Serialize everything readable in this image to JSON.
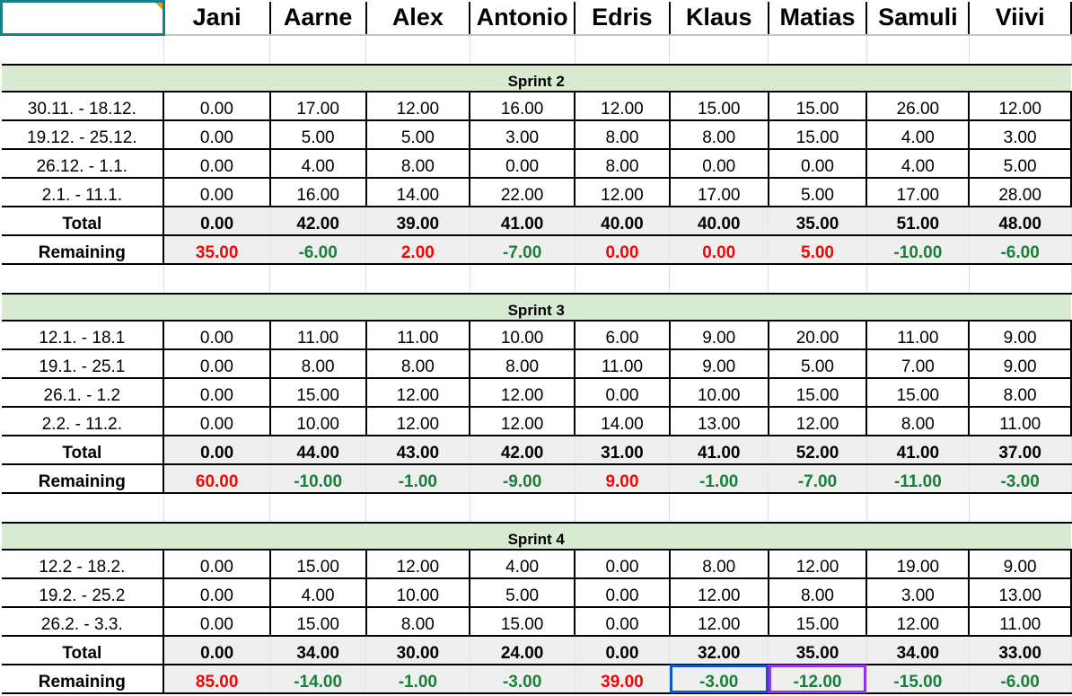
{
  "headers": [
    "Jani",
    "Aarne",
    "Alex",
    "Antonio",
    "Edris",
    "Klaus",
    "Matias",
    "Samuli",
    "Viivi"
  ],
  "colors": {
    "sprint_band": "#d9ead3",
    "negative": "#188038",
    "positive": "#ff0000",
    "summary_bg": "#efefef"
  },
  "sprints": [
    {
      "title": "Sprint 2",
      "rows": [
        {
          "label": "30.11. - 18.12.",
          "values": [
            "0.00",
            "17.00",
            "12.00",
            "16.00",
            "12.00",
            "15.00",
            "15.00",
            "26.00",
            "12.00"
          ]
        },
        {
          "label": "19.12. - 25.12.",
          "values": [
            "0.00",
            "5.00",
            "5.00",
            "3.00",
            "8.00",
            "8.00",
            "15.00",
            "4.00",
            "3.00"
          ]
        },
        {
          "label": "26.12. - 1.1.",
          "values": [
            "0.00",
            "4.00",
            "8.00",
            "0.00",
            "8.00",
            "0.00",
            "0.00",
            "4.00",
            "5.00"
          ]
        },
        {
          "label": "2.1. - 11.1.",
          "values": [
            "0.00",
            "16.00",
            "14.00",
            "22.00",
            "12.00",
            "17.00",
            "5.00",
            "17.00",
            "28.00"
          ]
        }
      ],
      "total": {
        "label": "Total",
        "values": [
          "0.00",
          "42.00",
          "39.00",
          "41.00",
          "40.00",
          "40.00",
          "35.00",
          "51.00",
          "48.00"
        ]
      },
      "remaining": {
        "label": "Remaining",
        "values": [
          "35.00",
          "-6.00",
          "2.00",
          "-7.00",
          "0.00",
          "0.00",
          "5.00",
          "-10.00",
          "-6.00"
        ]
      }
    },
    {
      "title": "Sprint 3",
      "rows": [
        {
          "label": "12.1. - 18.1",
          "values": [
            "0.00",
            "11.00",
            "11.00",
            "10.00",
            "6.00",
            "9.00",
            "20.00",
            "11.00",
            "9.00"
          ]
        },
        {
          "label": "19.1. - 25.1",
          "values": [
            "0.00",
            "8.00",
            "8.00",
            "8.00",
            "11.00",
            "9.00",
            "5.00",
            "7.00",
            "9.00"
          ]
        },
        {
          "label": "26.1. - 1.2",
          "values": [
            "0.00",
            "15.00",
            "12.00",
            "12.00",
            "0.00",
            "10.00",
            "15.00",
            "15.00",
            "8.00"
          ]
        },
        {
          "label": "2.2. - 11.2.",
          "values": [
            "0.00",
            "10.00",
            "12.00",
            "12.00",
            "14.00",
            "13.00",
            "12.00",
            "8.00",
            "11.00"
          ]
        }
      ],
      "total": {
        "label": "Total",
        "values": [
          "0.00",
          "44.00",
          "43.00",
          "42.00",
          "31.00",
          "41.00",
          "52.00",
          "41.00",
          "37.00"
        ]
      },
      "remaining": {
        "label": "Remaining",
        "values": [
          "60.00",
          "-10.00",
          "-1.00",
          "-9.00",
          "9.00",
          "-1.00",
          "-7.00",
          "-11.00",
          "-3.00"
        ]
      }
    },
    {
      "title": "Sprint 4",
      "rows": [
        {
          "label": "12.2 - 18.2.",
          "values": [
            "0.00",
            "15.00",
            "12.00",
            "4.00",
            "0.00",
            "8.00",
            "12.00",
            "19.00",
            "9.00"
          ]
        },
        {
          "label": "19.2. - 25.2",
          "values": [
            "0.00",
            "4.00",
            "10.00",
            "5.00",
            "0.00",
            "12.00",
            "8.00",
            "3.00",
            "13.00"
          ]
        },
        {
          "label": "26.2. - 3.3.",
          "values": [
            "0.00",
            "15.00",
            "8.00",
            "15.00",
            "0.00",
            "12.00",
            "15.00",
            "12.00",
            "11.00"
          ]
        }
      ],
      "total": {
        "label": "Total",
        "values": [
          "0.00",
          "34.00",
          "30.00",
          "24.00",
          "0.00",
          "32.00",
          "35.00",
          "34.00",
          "33.00"
        ]
      },
      "remaining": {
        "label": "Remaining",
        "values": [
          "85.00",
          "-14.00",
          "-1.00",
          "-3.00",
          "39.00",
          "-3.00",
          "-12.00",
          "-15.00",
          "-6.00"
        ]
      }
    }
  ]
}
